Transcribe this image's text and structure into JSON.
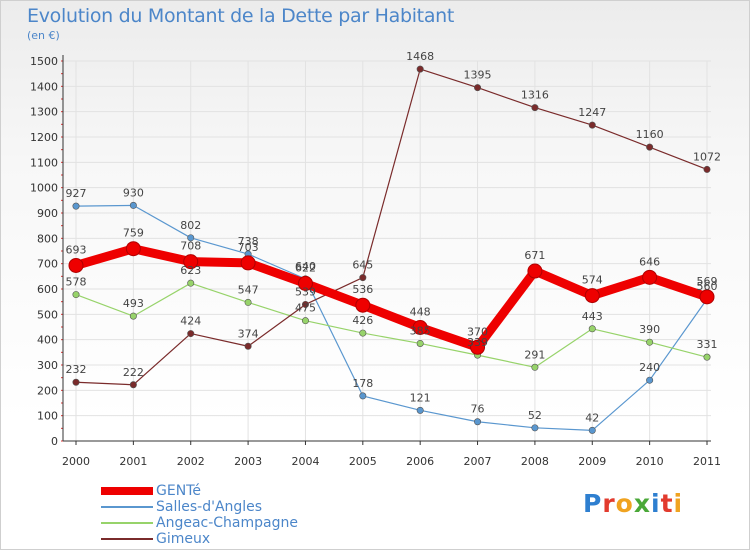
{
  "title": "Evolution du Montant de la Dette par Habitant",
  "subtitle": "(en €)",
  "chart_data": {
    "type": "line",
    "title": "Evolution du Montant de la Dette par Habitant",
    "ylabel": "(en €)",
    "xlabel": "",
    "x": [
      "2000",
      "2001",
      "2002",
      "2003",
      "2004",
      "2005",
      "2006",
      "2007",
      "2008",
      "2009",
      "2010",
      "2011"
    ],
    "ylim": [
      0,
      1500
    ],
    "yticks": [
      0,
      100,
      200,
      300,
      400,
      500,
      600,
      700,
      800,
      900,
      1000,
      1100,
      1200,
      1300,
      1400,
      1500
    ],
    "grid": true,
    "series": [
      {
        "name": "GENTé",
        "color": "#ee0000",
        "emphasis": true,
        "values": [
          693,
          759,
          708,
          703,
          622,
          536,
          448,
          370,
          671,
          574,
          646,
          569
        ]
      },
      {
        "name": "Salles-d'Angles",
        "color": "#5a97cf",
        "values": [
          927,
          930,
          802,
          738,
          640,
          178,
          121,
          76,
          52,
          42,
          240,
          560
        ]
      },
      {
        "name": "Angeac-Champagne",
        "color": "#97d36a",
        "values": [
          578,
          493,
          623,
          547,
          475,
          426,
          385,
          339,
          291,
          443,
          390,
          331
        ]
      },
      {
        "name": "Gimeux",
        "color": "#7a2b2b",
        "values": [
          232,
          222,
          424,
          374,
          539,
          645,
          1468,
          1395,
          1316,
          1247,
          1160,
          1072
        ]
      }
    ]
  },
  "legend": {
    "items": [
      {
        "label": "GENTé",
        "color": "#ee0000"
      },
      {
        "label": "Salles-d'Angles",
        "color": "#5a97cf"
      },
      {
        "label": "Angeac-Champagne",
        "color": "#97d36a"
      },
      {
        "label": "Gimeux",
        "color": "#7a2b2b"
      }
    ]
  },
  "brand": {
    "letters": [
      {
        "ch": "P",
        "color": "#2e7fd0"
      },
      {
        "ch": "r",
        "color": "#e23b2e"
      },
      {
        "ch": "o",
        "color": "#f0a320"
      },
      {
        "ch": "x",
        "color": "#4aa838"
      },
      {
        "ch": "i",
        "color": "#2e7fd0"
      },
      {
        "ch": "t",
        "color": "#e23b2e"
      },
      {
        "ch": "i",
        "color": "#f0a320"
      }
    ]
  }
}
